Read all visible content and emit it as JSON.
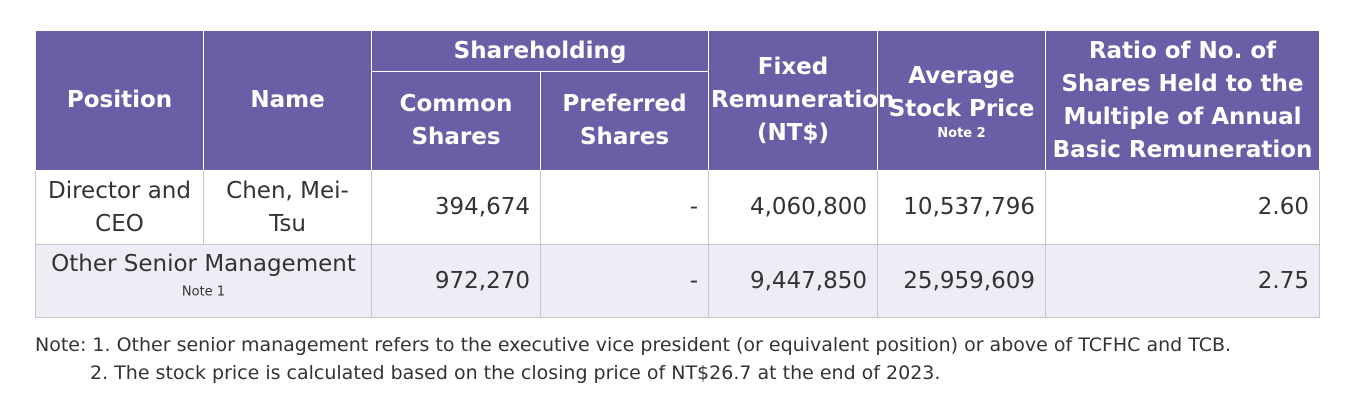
{
  "table": {
    "headers": {
      "position": "Position",
      "name": "Name",
      "shareholding": "Shareholding",
      "common_shares": "Common Shares",
      "preferred_shares": "Preferred Shares",
      "fixed_remuneration": "Fixed Remuneration (NT$)",
      "average_stock_price": "Average Stock Price",
      "average_stock_price_note": "Note 2",
      "ratio": "Ratio of No. of Shares Held to the Multiple of Annual Basic Remuneration"
    },
    "rows": [
      {
        "position": "Director and CEO",
        "name": "Chen, Mei-Tsu",
        "common_shares": "394,674",
        "preferred_shares": "-",
        "fixed_remuneration": "4,060,800",
        "average_stock_price": "10,537,796",
        "ratio": "2.60"
      },
      {
        "position": "Other Senior Management",
        "position_note": "Note 1",
        "common_shares": "972,270",
        "preferred_shares": "-",
        "fixed_remuneration": "9,447,850",
        "average_stock_price": "25,959,609",
        "ratio": "2.75"
      }
    ]
  },
  "notes": {
    "line1": "Note: 1. Other senior management refers to the executive vice president (or equivalent position) or above of TCFHC and TCB.",
    "line2": "2. The stock price is calculated based on the closing price of NT$26.7 at the end of 2023."
  },
  "colors": {
    "header_bg": "#6a5ea6",
    "header_text": "#ffffff",
    "row_alt_bg": "#eeedf5"
  }
}
